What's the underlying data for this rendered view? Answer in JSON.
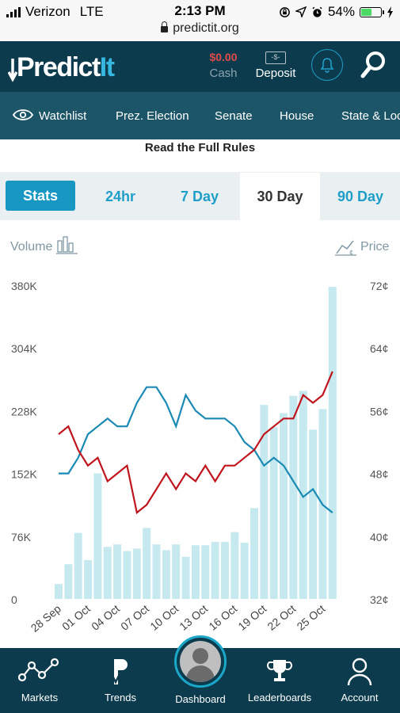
{
  "status_bar": {
    "carrier": "Verizon",
    "network": "LTE",
    "time": "2:13 PM",
    "url": "predictit.org",
    "battery": "54%",
    "battery_level": 0.54
  },
  "header": {
    "logo_main": "Predict",
    "logo_accent": "It",
    "cash_amount": "$0.00",
    "cash_label": "Cash",
    "deposit_icon_text": "-$-",
    "deposit_label": "Deposit"
  },
  "nav": {
    "items": [
      "Watchlist",
      "Prez. Election",
      "Senate",
      "House",
      "State & Local"
    ]
  },
  "rules_link": "Read the Full Rules",
  "tabs": {
    "stats": "Stats",
    "t24": "24hr",
    "t7": "7 Day",
    "t30": "30 Day",
    "t90": "90 Day",
    "active": "30 Day"
  },
  "chart_data": {
    "type": "bar+line",
    "left_axis_label": "Volume",
    "right_axis_label": "Price",
    "volume_ticks": [
      "380K",
      "304K",
      "228K",
      "152K",
      "76K",
      "0"
    ],
    "price_ticks": [
      "72¢",
      "64¢",
      "56¢",
      "48¢",
      "40¢",
      "32¢"
    ],
    "volume_range": [
      0,
      380000
    ],
    "price_range": [
      32,
      72
    ],
    "x_tick_labels": [
      "28 Sep",
      "01 Oct",
      "04 Oct",
      "07 Oct",
      "10 Oct",
      "13 Oct",
      "16 Oct",
      "19 Oct",
      "22 Oct",
      "25 Oct"
    ],
    "volume": [
      18000,
      42000,
      80000,
      47000,
      152000,
      63000,
      66000,
      58000,
      61000,
      86000,
      66000,
      59000,
      66000,
      51000,
      65000,
      65000,
      69000,
      69000,
      81000,
      68000,
      110000,
      235000,
      208000,
      225000,
      246000,
      252000,
      205000,
      230000,
      378000
    ],
    "series": [
      {
        "name": "red",
        "color": "#c0141c",
        "values": [
          53,
          54,
          51,
          49,
          50,
          47,
          48,
          49,
          43,
          44,
          46,
          48,
          46,
          48,
          47,
          49,
          47,
          49,
          49,
          50,
          51,
          53,
          54,
          55,
          55,
          58,
          57,
          58,
          61
        ]
      },
      {
        "name": "blue",
        "color": "#1a8ab5",
        "values": [
          48,
          48,
          50,
          53,
          54,
          55,
          54,
          54,
          57,
          59,
          59,
          57,
          54,
          58,
          56,
          55,
          55,
          55,
          54,
          52,
          51,
          49,
          50,
          49,
          47,
          45,
          46,
          44,
          43
        ]
      }
    ]
  },
  "bottom_nav": {
    "markets": "Markets",
    "trends": "Trends",
    "dashboard": "Dashboard",
    "leaderboards": "Leaderboards",
    "account": "Account"
  }
}
